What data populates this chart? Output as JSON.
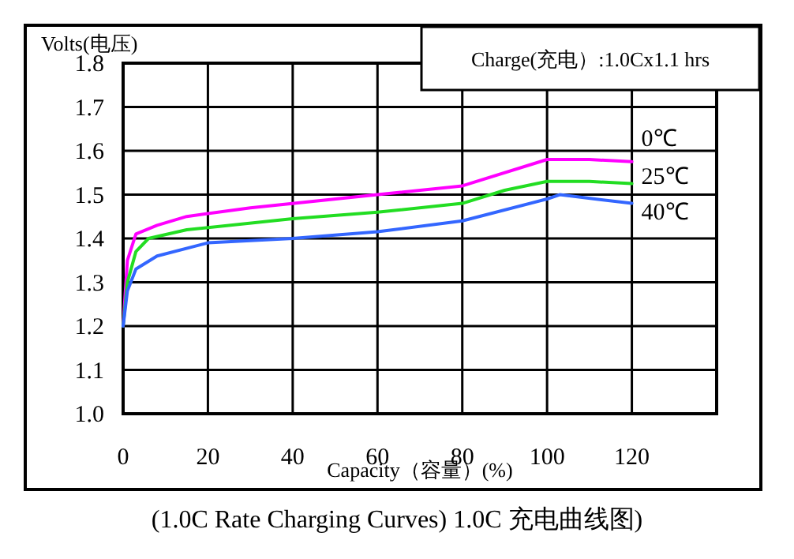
{
  "chart_data": {
    "type": "line",
    "title": "(1.0C Rate Charging Curves) 1.0C 充电曲线图)",
    "xlabel": "Capacity（容量）(%)",
    "ylabel": "Volts(电压)",
    "annotations": [
      "Charge(充电）:1.0Cx1.1 hrs"
    ],
    "xlim": [
      0,
      140
    ],
    "xticks": [
      0,
      20,
      40,
      60,
      80,
      100,
      120
    ],
    "ylim": [
      1.0,
      1.8
    ],
    "yticks": [
      {
        "value": 1.0,
        "label": "1.0"
      },
      1.1,
      1.2,
      1.3,
      1.4,
      1.5,
      1.6,
      1.7,
      1.8
    ],
    "grid": true,
    "marker": "none",
    "line_style": "solid",
    "series": [
      {
        "name": "0℃",
        "color": "#ff00ff",
        "x": [
          0,
          1,
          3,
          8,
          15,
          30,
          60,
          80,
          100,
          110,
          120
        ],
        "values": [
          1.2,
          1.35,
          1.41,
          1.43,
          1.45,
          1.47,
          1.5,
          1.52,
          1.58,
          1.58,
          1.575
        ]
      },
      {
        "name": "25℃",
        "color": "#22dd22",
        "x": [
          0,
          1,
          3,
          6,
          15,
          40,
          60,
          80,
          90,
          100,
          110,
          120
        ],
        "values": [
          1.2,
          1.3,
          1.37,
          1.4,
          1.42,
          1.445,
          1.46,
          1.48,
          1.51,
          1.53,
          1.53,
          1.525
        ]
      },
      {
        "name": "40℃",
        "color": "#3366ff",
        "x": [
          0,
          1,
          3,
          8,
          20,
          40,
          60,
          80,
          100,
          103,
          120
        ],
        "values": [
          1.2,
          1.28,
          1.33,
          1.36,
          1.39,
          1.4,
          1.415,
          1.44,
          1.49,
          1.5,
          1.48
        ]
      }
    ]
  }
}
